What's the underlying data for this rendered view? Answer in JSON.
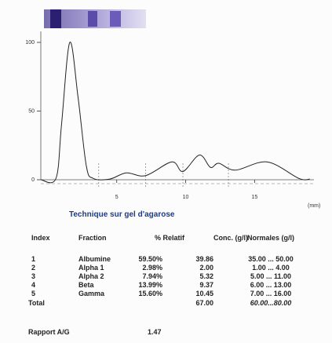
{
  "chart_data": {
    "type": "line",
    "x_label": "(mm)",
    "x": [
      -0.5,
      0.6,
      1.0,
      1.6,
      2.2,
      2.8,
      3.3,
      4.5,
      5.7,
      7.1,
      9.0,
      9.8,
      11.0,
      11.8,
      12.4,
      13.6,
      15.9,
      18.2,
      19.0
    ],
    "values": [
      0,
      1,
      40,
      100,
      60,
      10,
      1,
      0.5,
      5,
      3,
      13,
      6,
      18,
      9,
      12,
      7,
      13,
      1,
      0.5
    ],
    "fraction_boundaries": [
      3.7,
      7.1,
      9.8,
      13.1
    ],
    "color": "#222",
    "xlim": [
      -0.5,
      19.3
    ],
    "ylim": [
      0,
      108
    ],
    "xticks": [
      5,
      10,
      15
    ],
    "yticks": [
      0,
      50,
      100
    ]
  },
  "title": "Technique sur gel d'agarose",
  "headers": [
    "Index",
    "Fraction",
    "% Relatif",
    "Conc. (g/l)",
    "Normales (g/l)"
  ],
  "rows": [
    [
      "1",
      "Albumine",
      "59.50%",
      "39.86",
      "35.00 ... 50.00"
    ],
    [
      "2",
      "Alpha 1",
      "2.98%",
      "2.00",
      "1.00 ... 4.00"
    ],
    [
      "3",
      "Alpha 2",
      "7.94%",
      "5.32",
      "5.00 ... 11.00"
    ],
    [
      "4",
      "Beta",
      "13.99%",
      "9.37",
      "6.00 ... 13.00"
    ],
    [
      "5",
      "Gamma",
      "15.60%",
      "10.45",
      "7.00 ... 16.00"
    ]
  ],
  "total": {
    "label": "Total",
    "conc": "67.00",
    "normales": "60.00...80.00"
  },
  "ratio": {
    "label": "Rapport A/G",
    "value": "1.47"
  }
}
